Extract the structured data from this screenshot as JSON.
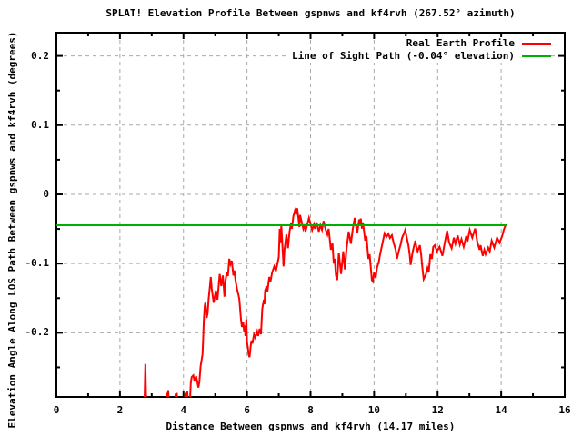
{
  "title": "SPLAT! Elevation Profile Between gspnws and kf4rvh (267.52° azimuth)",
  "colors": {
    "background": "#ffffff",
    "border": "#000000",
    "grid": "#a9a9a9",
    "profile": "#ff0000",
    "los": "#00b000",
    "text": "#000000"
  },
  "chart_data": {
    "type": "line",
    "title": "SPLAT! Elevation Profile Between gspnws and kf4rvh (267.52° azimuth)",
    "xlabel": "Distance Between gspnws and kf4rvh (14.17 miles)",
    "ylabel": "Elevation Angle Along LOS Path Between gspnws and kf4rvh (degrees)",
    "xlim": [
      0,
      16
    ],
    "ylim": [
      -0.2927,
      0.2336
    ],
    "grid": true,
    "legend_position": "top-right-inside",
    "x_major_ticks": [
      0,
      2,
      4,
      6,
      8,
      10,
      12,
      14,
      16
    ],
    "x_tick_labels": [
      "0",
      "2",
      "4",
      "6",
      "8",
      "10",
      "12",
      "14",
      "16"
    ],
    "x_minor_ticks": [
      1,
      3,
      5,
      7,
      9,
      11,
      13,
      15
    ],
    "y_major_ticks": [
      -0.2,
      -0.1,
      0,
      0.1,
      0.2
    ],
    "y_tick_labels": [
      "-0.2",
      "-0.1",
      "0",
      "0.1",
      "0.2"
    ],
    "y_minor_ticks": [
      -0.25,
      -0.15,
      -0.05,
      0.05,
      0.15
    ],
    "series": [
      {
        "name": "Real Earth Profile",
        "color": "#ff0000",
        "points": [
          [
            2.77,
            -0.31
          ],
          [
            2.8,
            -0.245
          ],
          [
            2.83,
            -0.31
          ],
          [
            3.46,
            -0.31
          ],
          [
            3.48,
            -0.287
          ],
          [
            3.5,
            -0.292
          ],
          [
            3.52,
            -0.283
          ],
          [
            3.55,
            -0.31
          ],
          [
            3.73,
            -0.31
          ],
          [
            3.75,
            -0.288
          ],
          [
            3.77,
            -0.292
          ],
          [
            3.79,
            -0.287
          ],
          [
            3.81,
            -0.31
          ],
          [
            4.03,
            -0.31
          ],
          [
            4.06,
            -0.287
          ],
          [
            4.09,
            -0.293
          ],
          [
            4.12,
            -0.285
          ],
          [
            4.15,
            -0.31
          ],
          [
            4.21,
            -0.293
          ],
          [
            4.23,
            -0.2725
          ],
          [
            4.26,
            -0.2638
          ],
          [
            4.31,
            -0.2615
          ],
          [
            4.35,
            -0.2703
          ],
          [
            4.4,
            -0.2628
          ],
          [
            4.47,
            -0.2791
          ],
          [
            4.5,
            -0.2716
          ],
          [
            4.54,
            -0.248
          ],
          [
            4.6,
            -0.231
          ],
          [
            4.62,
            -0.209
          ],
          [
            4.64,
            -0.1828
          ],
          [
            4.67,
            -0.161
          ],
          [
            4.69,
            -0.1566
          ],
          [
            4.73,
            -0.1785
          ],
          [
            4.76,
            -0.1719
          ],
          [
            4.79,
            -0.152
          ],
          [
            4.83,
            -0.134
          ],
          [
            4.86,
            -0.1194
          ],
          [
            4.89,
            -0.1365
          ],
          [
            4.95,
            -0.1566
          ],
          [
            5.02,
            -0.1391
          ],
          [
            5.07,
            -0.1522
          ],
          [
            5.14,
            -0.1151
          ],
          [
            5.19,
            -0.1325
          ],
          [
            5.24,
            -0.1172
          ],
          [
            5.29,
            -0.1479
          ],
          [
            5.32,
            -0.126
          ],
          [
            5.36,
            -0.1129
          ],
          [
            5.4,
            -0.118
          ],
          [
            5.44,
            -0.0932
          ],
          [
            5.48,
            -0.101
          ],
          [
            5.52,
            -0.096
          ],
          [
            5.57,
            -0.1172
          ],
          [
            5.6,
            -0.11
          ],
          [
            5.64,
            -0.125
          ],
          [
            5.69,
            -0.138
          ],
          [
            5.73,
            -0.145
          ],
          [
            5.76,
            -0.1522
          ],
          [
            5.81,
            -0.1807
          ],
          [
            5.84,
            -0.1916
          ],
          [
            5.88,
            -0.185
          ],
          [
            5.91,
            -0.1982
          ],
          [
            5.93,
            -0.1894
          ],
          [
            5.95,
            -0.2047
          ],
          [
            5.98,
            -0.1807
          ],
          [
            6.0,
            -0.2135
          ],
          [
            6.03,
            -0.2222
          ],
          [
            6.05,
            -0.231
          ],
          [
            6.08,
            -0.2353
          ],
          [
            6.12,
            -0.2178
          ],
          [
            6.14,
            -0.2113
          ],
          [
            6.17,
            -0.2156
          ],
          [
            6.22,
            -0.2025
          ],
          [
            6.26,
            -0.207
          ],
          [
            6.32,
            -0.1982
          ],
          [
            6.35,
            -0.2047
          ],
          [
            6.4,
            -0.1942
          ],
          [
            6.44,
            -0.2021
          ],
          [
            6.48,
            -0.1654
          ],
          [
            6.53,
            -0.1522
          ],
          [
            6.55,
            -0.1588
          ],
          [
            6.57,
            -0.1391
          ],
          [
            6.62,
            -0.1325
          ],
          [
            6.64,
            -0.1413
          ],
          [
            6.7,
            -0.1194
          ],
          [
            6.74,
            -0.126
          ],
          [
            6.79,
            -0.1129
          ],
          [
            6.86,
            -0.1041
          ],
          [
            6.91,
            -0.1106
          ],
          [
            7.0,
            -0.0909
          ],
          [
            7.03,
            -0.0499
          ],
          [
            7.05,
            -0.0692
          ],
          [
            7.08,
            -0.045
          ],
          [
            7.15,
            -0.1041
          ],
          [
            7.18,
            -0.0801
          ],
          [
            7.24,
            -0.0581
          ],
          [
            7.29,
            -0.0778
          ],
          [
            7.34,
            -0.0538
          ],
          [
            7.39,
            -0.0407
          ],
          [
            7.41,
            -0.0499
          ],
          [
            7.46,
            -0.0315
          ],
          [
            7.51,
            -0.0232
          ],
          [
            7.55,
            -0.0289
          ],
          [
            7.58,
            -0.0201
          ],
          [
            7.65,
            -0.0472
          ],
          [
            7.67,
            -0.0298
          ],
          [
            7.77,
            -0.0495
          ],
          [
            7.81,
            -0.0433
          ],
          [
            7.84,
            -0.0538
          ],
          [
            7.95,
            -0.0341
          ],
          [
            8.05,
            -0.0516
          ],
          [
            8.11,
            -0.0433
          ],
          [
            8.14,
            -0.0499
          ],
          [
            8.19,
            -0.0407
          ],
          [
            8.26,
            -0.0538
          ],
          [
            8.31,
            -0.0446
          ],
          [
            8.36,
            -0.0512
          ],
          [
            8.41,
            -0.0385
          ],
          [
            8.47,
            -0.0499
          ],
          [
            8.53,
            -0.0581
          ],
          [
            8.57,
            -0.0499
          ],
          [
            8.64,
            -0.0801
          ],
          [
            8.69,
            -0.0709
          ],
          [
            8.73,
            -0.0997
          ],
          [
            8.76,
            -0.0932
          ],
          [
            8.8,
            -0.1172
          ],
          [
            8.84,
            -0.1238
          ],
          [
            8.89,
            -0.0844
          ],
          [
            8.96,
            -0.1151
          ],
          [
            9.03,
            -0.0823
          ],
          [
            9.08,
            -0.1085
          ],
          [
            9.13,
            -0.0801
          ],
          [
            9.2,
            -0.0538
          ],
          [
            9.27,
            -0.0713
          ],
          [
            9.33,
            -0.0499
          ],
          [
            9.39,
            -0.0341
          ],
          [
            9.47,
            -0.056
          ],
          [
            9.53,
            -0.0363
          ],
          [
            9.55,
            -0.0446
          ],
          [
            9.58,
            -0.035
          ],
          [
            9.62,
            -0.0495
          ],
          [
            9.65,
            -0.0407
          ],
          [
            9.72,
            -0.0669
          ],
          [
            9.76,
            -0.0604
          ],
          [
            9.82,
            -0.0932
          ],
          [
            9.86,
            -0.0866
          ],
          [
            9.93,
            -0.1238
          ],
          [
            9.96,
            -0.126
          ],
          [
            10.0,
            -0.1129
          ],
          [
            10.05,
            -0.1207
          ],
          [
            10.09,
            -0.1063
          ],
          [
            10.15,
            -0.0971
          ],
          [
            10.19,
            -0.0866
          ],
          [
            10.25,
            -0.0735
          ],
          [
            10.33,
            -0.0564
          ],
          [
            10.39,
            -0.0617
          ],
          [
            10.45,
            -0.0571
          ],
          [
            10.5,
            -0.063
          ],
          [
            10.56,
            -0.0591
          ],
          [
            10.62,
            -0.0709
          ],
          [
            10.68,
            -0.0801
          ],
          [
            10.72,
            -0.0932
          ],
          [
            10.78,
            -0.0814
          ],
          [
            10.83,
            -0.0735
          ],
          [
            10.88,
            -0.063
          ],
          [
            10.93,
            -0.0577
          ],
          [
            10.98,
            -0.0516
          ],
          [
            11.03,
            -0.063
          ],
          [
            11.08,
            -0.0735
          ],
          [
            11.12,
            -0.0866
          ],
          [
            11.15,
            -0.102
          ],
          [
            11.21,
            -0.084
          ],
          [
            11.25,
            -0.0761
          ],
          [
            11.3,
            -0.0669
          ],
          [
            11.33,
            -0.0761
          ],
          [
            11.37,
            -0.0823
          ],
          [
            11.44,
            -0.0735
          ],
          [
            11.48,
            -0.0866
          ],
          [
            11.52,
            -0.1063
          ],
          [
            11.56,
            -0.1225
          ],
          [
            11.63,
            -0.1155
          ],
          [
            11.68,
            -0.1063
          ],
          [
            11.72,
            -0.1129
          ],
          [
            11.77,
            -0.0866
          ],
          [
            11.82,
            -0.0932
          ],
          [
            11.86,
            -0.0761
          ],
          [
            11.91,
            -0.0735
          ],
          [
            11.98,
            -0.0823
          ],
          [
            12.06,
            -0.0758
          ],
          [
            12.1,
            -0.0814
          ],
          [
            12.15,
            -0.0889
          ],
          [
            12.22,
            -0.0709
          ],
          [
            12.3,
            -0.0525
          ],
          [
            12.36,
            -0.0692
          ],
          [
            12.44,
            -0.0778
          ],
          [
            12.51,
            -0.0626
          ],
          [
            12.56,
            -0.0713
          ],
          [
            12.63,
            -0.0594
          ],
          [
            12.7,
            -0.0726
          ],
          [
            12.75,
            -0.0647
          ],
          [
            12.82,
            -0.0758
          ],
          [
            12.9,
            -0.0604
          ],
          [
            12.94,
            -0.0682
          ],
          [
            13.01,
            -0.0516
          ],
          [
            13.09,
            -0.0626
          ],
          [
            13.14,
            -0.0551
          ],
          [
            13.18,
            -0.0495
          ],
          [
            13.25,
            -0.0692
          ],
          [
            13.32,
            -0.0801
          ],
          [
            13.35,
            -0.0735
          ],
          [
            13.42,
            -0.0889
          ],
          [
            13.47,
            -0.0801
          ],
          [
            13.51,
            -0.0866
          ],
          [
            13.59,
            -0.077
          ],
          [
            13.64,
            -0.0823
          ],
          [
            13.7,
            -0.0669
          ],
          [
            13.78,
            -0.077
          ],
          [
            13.87,
            -0.0626
          ],
          [
            13.95,
            -0.0699
          ],
          [
            14.03,
            -0.0604
          ],
          [
            14.08,
            -0.0516
          ],
          [
            14.14,
            -0.0442
          ]
        ]
      },
      {
        "name": "Line of Sight Path (-0.04° elevation)",
        "color": "#00b000",
        "points": [
          [
            0,
            -0.0446
          ],
          [
            14.17,
            -0.0446
          ]
        ]
      }
    ]
  }
}
